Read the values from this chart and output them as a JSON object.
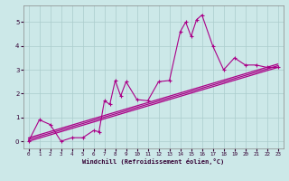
{
  "xlabel": "Windchill (Refroidissement éolien,°C)",
  "background_color": "#cce8e8",
  "grid_color": "#aacccc",
  "line_color": "#aa0088",
  "xlim": [
    -0.5,
    23.5
  ],
  "ylim": [
    -0.3,
    5.7
  ],
  "xticks": [
    0,
    1,
    2,
    3,
    4,
    5,
    6,
    7,
    8,
    9,
    10,
    11,
    12,
    13,
    14,
    15,
    16,
    17,
    18,
    19,
    20,
    21,
    22,
    23
  ],
  "yticks": [
    0,
    1,
    2,
    3,
    4,
    5
  ],
  "series": [
    [
      0.0,
      0.0
    ],
    [
      1.0,
      0.9
    ],
    [
      2.0,
      0.7
    ],
    [
      3.0,
      0.0
    ],
    [
      4.0,
      0.15
    ],
    [
      5.0,
      0.15
    ],
    [
      6.0,
      0.45
    ],
    [
      6.5,
      0.4
    ],
    [
      7.0,
      1.7
    ],
    [
      7.5,
      1.55
    ],
    [
      8.0,
      2.55
    ],
    [
      8.5,
      1.9
    ],
    [
      9.0,
      2.5
    ],
    [
      10.0,
      1.75
    ],
    [
      11.0,
      1.7
    ],
    [
      12.0,
      2.5
    ],
    [
      13.0,
      2.55
    ],
    [
      14.0,
      4.6
    ],
    [
      14.5,
      5.0
    ],
    [
      15.0,
      4.4
    ],
    [
      15.5,
      5.1
    ],
    [
      16.0,
      5.3
    ],
    [
      17.0,
      4.0
    ],
    [
      18.0,
      3.0
    ],
    [
      19.0,
      3.5
    ],
    [
      20.0,
      3.2
    ],
    [
      21.0,
      3.2
    ],
    [
      22.0,
      3.1
    ],
    [
      23.0,
      3.1
    ]
  ],
  "trend_lines": [
    [
      [
        0,
        23
      ],
      [
        0.0,
        3.1
      ]
    ],
    [
      [
        0,
        23
      ],
      [
        0.07,
        3.17
      ]
    ],
    [
      [
        0,
        23
      ],
      [
        0.14,
        3.24
      ]
    ]
  ]
}
